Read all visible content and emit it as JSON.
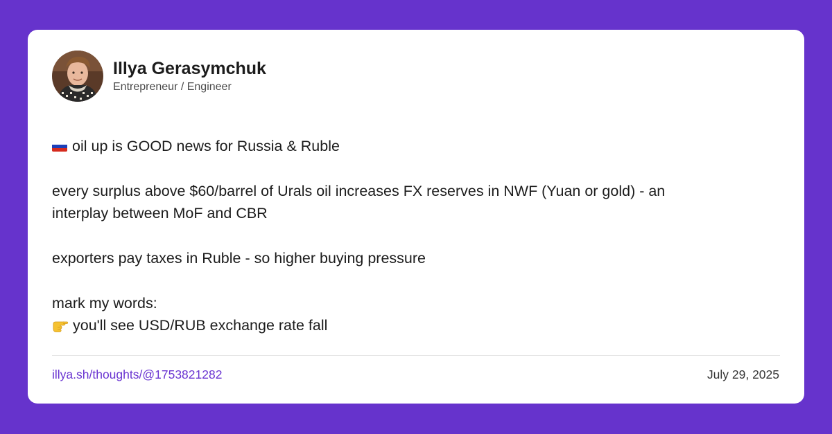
{
  "colors": {
    "background": "#6633cc",
    "card": "#ffffff",
    "link": "#6a35d1"
  },
  "author": {
    "name": "Illya Gerasymchuk",
    "title": "Entrepreneur / Engineer"
  },
  "post": {
    "line1_icon": "russia-flag-icon",
    "line1": "oil up is GOOD news for Russia & Ruble",
    "line2a": "every surplus above $60/barrel of Urals oil increases FX reserves in NWF (Yuan or gold) - an",
    "line2b": "interplay between MoF and CBR",
    "line3": "exporters pay taxes in Ruble - so higher buying pressure",
    "line4": "mark my words:",
    "line5_icon": "pointing-hand-icon",
    "line5": "you'll see USD/RUB exchange rate fall"
  },
  "footer": {
    "link": "illya.sh/thoughts/@1753821282",
    "date": "July 29, 2025"
  }
}
